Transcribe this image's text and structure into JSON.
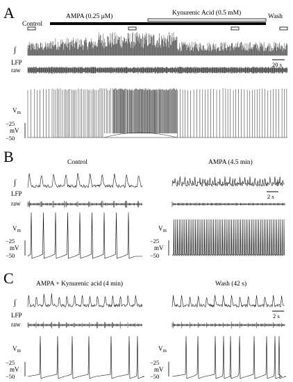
{
  "panels": {
    "A": {
      "letter": "A",
      "conditions": {
        "control": "Control",
        "ampa": "AMPA (0.25 μM)",
        "kyn": "Kynurenic Acid (0.5 mM)",
        "wash": "Wash"
      },
      "scale_bar": "20 s"
    },
    "B": {
      "letter": "B",
      "left_title": "Control",
      "right_title": "AMPA (4.5 min)",
      "scale_bar": "2 s"
    },
    "C": {
      "letter": "C",
      "left_title": "AMPA + Kynurenic acid (4 min)",
      "right_title": "Wash (42 s)",
      "scale_bar": "2 s"
    }
  },
  "labels": {
    "integral": "∫",
    "lfp": "LFP",
    "raw": "raw",
    "vm": "V",
    "vm_sub": "m",
    "mv": "mV",
    "tick_upper": "−25",
    "tick_lower": "−50"
  }
}
